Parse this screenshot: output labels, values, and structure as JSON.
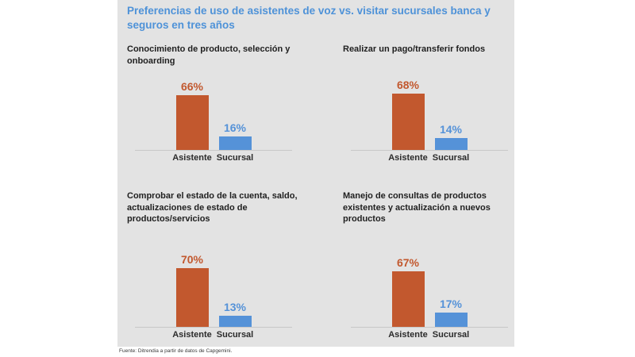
{
  "header": {
    "title": "Preferencias de uso de asistentes de voz vs. visitar sucursales banca y seguros en tres años"
  },
  "footer": {
    "source": "Fuente: Ditrendia a partir de datos de Capgemini."
  },
  "colors": {
    "panel_bg": "#e3e3e3",
    "title": "#4e92d8",
    "heading": "#1f1f1f",
    "asistente": "#c2582e",
    "sucursal": "#5592d8",
    "axis": "#c8c8c8",
    "footer": "#3a3a3a"
  },
  "chart_data": [
    {
      "type": "bar",
      "title": "Conocimiento de producto, selección y onboarding",
      "categories": [
        "Asistente",
        "Sucursal"
      ],
      "values": [
        66,
        16
      ],
      "value_labels": [
        "66%",
        "16%"
      ],
      "series_colors": [
        "#c2582e",
        "#5592d8"
      ],
      "ylim": [
        0,
        100
      ],
      "grid": false,
      "legend": "none"
    },
    {
      "type": "bar",
      "title": "Realizar un pago/transferir fondos",
      "categories": [
        "Asistente",
        "Sucursal"
      ],
      "values": [
        68,
        14
      ],
      "value_labels": [
        "68%",
        "14%"
      ],
      "series_colors": [
        "#c2582e",
        "#5592d8"
      ],
      "ylim": [
        0,
        100
      ],
      "grid": false,
      "legend": "none"
    },
    {
      "type": "bar",
      "title": "Comprobar el estado de la cuenta, saldo, actualizaciones de estado de productos/servicios",
      "categories": [
        "Asistente",
        "Sucursal"
      ],
      "values": [
        70,
        13
      ],
      "value_labels": [
        "70%",
        "13%"
      ],
      "series_colors": [
        "#c2582e",
        "#5592d8"
      ],
      "ylim": [
        0,
        100
      ],
      "grid": false,
      "legend": "none"
    },
    {
      "type": "bar",
      "title": "Manejo de consultas de productos existentes y actualización a nuevos productos",
      "categories": [
        "Asistente",
        "Sucursal"
      ],
      "values": [
        67,
        17
      ],
      "value_labels": [
        "67%",
        "17%"
      ],
      "series_colors": [
        "#c2582e",
        "#5592d8"
      ],
      "ylim": [
        0,
        100
      ],
      "grid": false,
      "legend": "none"
    }
  ]
}
